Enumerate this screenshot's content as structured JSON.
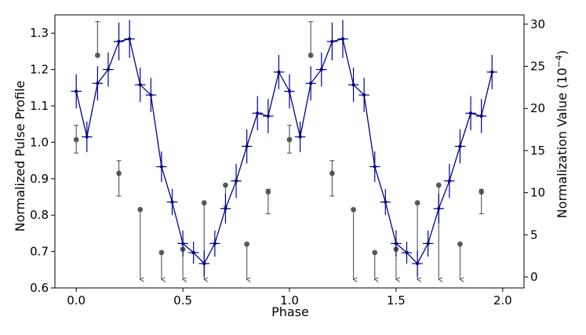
{
  "chart_data": {
    "type": "line",
    "xlabel": "Phase",
    "ylabel": "Normalized Pulse Profile",
    "y2label": "Normalization Value (10",
    "y2label_exp": "−4",
    "y2label_close": ")",
    "xlim": [
      -0.1,
      2.1
    ],
    "ylim": [
      0.6,
      1.35
    ],
    "y2lim": [
      -1.3,
      31.1
    ],
    "x_ticks": [
      0.0,
      0.5,
      1.0,
      1.5,
      2.0
    ],
    "x_tick_labels": [
      "0.0",
      "0.5",
      "1.0",
      "1.5",
      "2.0"
    ],
    "y_ticks": [
      0.6,
      0.7,
      0.8,
      0.9,
      1.0,
      1.1,
      1.2,
      1.3
    ],
    "y_tick_labels": [
      "0.6",
      "0.7",
      "0.8",
      "0.9",
      "1.0",
      "1.1",
      "1.2",
      "1.3"
    ],
    "y2_ticks": [
      0,
      5,
      10,
      15,
      20,
      25,
      30
    ],
    "y2_tick_labels": [
      "0",
      "5",
      "10",
      "15",
      "20",
      "25",
      "30"
    ],
    "grid": false,
    "series": [
      {
        "style": "line-with-errorbars",
        "color": "#00008b",
        "axis": "left",
        "x_halfwidth": 0.025,
        "points": [
          {
            "x": 0.0,
            "y": 1.14,
            "yerr": 0.047
          },
          {
            "x": 0.05,
            "y": 1.015,
            "yerr": 0.042
          },
          {
            "x": 0.1,
            "y": 1.162,
            "yerr": 0.047
          },
          {
            "x": 0.15,
            "y": 1.2,
            "yerr": 0.047
          },
          {
            "x": 0.2,
            "y": 1.277,
            "yerr": 0.052
          },
          {
            "x": 0.25,
            "y": 1.284,
            "yerr": 0.052
          },
          {
            "x": 0.3,
            "y": 1.158,
            "yerr": 0.047
          },
          {
            "x": 0.35,
            "y": 1.13,
            "yerr": 0.047
          },
          {
            "x": 0.4,
            "y": 0.933,
            "yerr": 0.042
          },
          {
            "x": 0.45,
            "y": 0.836,
            "yerr": 0.036
          },
          {
            "x": 0.5,
            "y": 0.722,
            "yerr": 0.036
          },
          {
            "x": 0.55,
            "y": 0.697,
            "yerr": 0.03
          },
          {
            "x": 0.6,
            "y": 0.667,
            "yerr": 0.036
          },
          {
            "x": 0.65,
            "y": 0.722,
            "yerr": 0.036
          },
          {
            "x": 0.7,
            "y": 0.818,
            "yerr": 0.041
          },
          {
            "x": 0.75,
            "y": 0.894,
            "yerr": 0.047
          },
          {
            "x": 0.8,
            "y": 0.989,
            "yerr": 0.047
          },
          {
            "x": 0.85,
            "y": 1.08,
            "yerr": 0.047
          },
          {
            "x": 0.9,
            "y": 1.072,
            "yerr": 0.047
          },
          {
            "x": 0.95,
            "y": 1.193,
            "yerr": 0.047
          },
          {
            "x": 1.0,
            "y": 1.14,
            "yerr": 0.047
          },
          {
            "x": 1.05,
            "y": 1.015,
            "yerr": 0.042
          },
          {
            "x": 1.1,
            "y": 1.162,
            "yerr": 0.047
          },
          {
            "x": 1.15,
            "y": 1.2,
            "yerr": 0.047
          },
          {
            "x": 1.2,
            "y": 1.277,
            "yerr": 0.052
          },
          {
            "x": 1.25,
            "y": 1.284,
            "yerr": 0.052
          },
          {
            "x": 1.3,
            "y": 1.158,
            "yerr": 0.047
          },
          {
            "x": 1.35,
            "y": 1.13,
            "yerr": 0.047
          },
          {
            "x": 1.4,
            "y": 0.933,
            "yerr": 0.042
          },
          {
            "x": 1.45,
            "y": 0.836,
            "yerr": 0.036
          },
          {
            "x": 1.5,
            "y": 0.722,
            "yerr": 0.036
          },
          {
            "x": 1.55,
            "y": 0.697,
            "yerr": 0.03
          },
          {
            "x": 1.6,
            "y": 0.667,
            "yerr": 0.036
          },
          {
            "x": 1.65,
            "y": 0.722,
            "yerr": 0.036
          },
          {
            "x": 1.7,
            "y": 0.818,
            "yerr": 0.041
          },
          {
            "x": 1.75,
            "y": 0.894,
            "yerr": 0.047
          },
          {
            "x": 1.8,
            "y": 0.989,
            "yerr": 0.047
          },
          {
            "x": 1.85,
            "y": 1.08,
            "yerr": 0.047
          },
          {
            "x": 1.9,
            "y": 1.072,
            "yerr": 0.047
          },
          {
            "x": 1.95,
            "y": 1.193,
            "yerr": 0.047
          }
        ]
      },
      {
        "style": "points-with-errorbars-and-upper-limits",
        "color": "#404040",
        "axis": "right",
        "points": [
          {
            "x": 0.0,
            "y": 16.3,
            "err_up": 1.7,
            "err_down": 1.6
          },
          {
            "x": 0.1,
            "y": 26.3,
            "err_up": 4.0
          },
          {
            "x": 0.2,
            "y": 12.3,
            "err_up": 1.5,
            "err_down": 2.7
          },
          {
            "x": 0.3,
            "y": 8.0,
            "upper_limit": true
          },
          {
            "x": 0.4,
            "y": 2.9,
            "upper_limit": true
          },
          {
            "x": 0.5,
            "y": 3.3,
            "upper_limit": true
          },
          {
            "x": 0.6,
            "y": 8.8,
            "upper_limit": true
          },
          {
            "x": 0.7,
            "y": 10.9,
            "err_down": 2.5
          },
          {
            "x": 0.8,
            "y": 3.9,
            "upper_limit": true
          },
          {
            "x": 0.9,
            "y": 10.1,
            "err_up": 0.3,
            "err_down": 2.6
          },
          {
            "x": 1.0,
            "y": 16.3,
            "err_up": 1.7,
            "err_down": 1.6
          },
          {
            "x": 1.1,
            "y": 26.3,
            "err_up": 4.0
          },
          {
            "x": 1.2,
            "y": 12.3,
            "err_up": 1.5,
            "err_down": 2.7
          },
          {
            "x": 1.3,
            "y": 8.0,
            "upper_limit": true
          },
          {
            "x": 1.4,
            "y": 2.9,
            "upper_limit": true
          },
          {
            "x": 1.5,
            "y": 3.3,
            "upper_limit": true
          },
          {
            "x": 1.6,
            "y": 8.8,
            "upper_limit": true
          },
          {
            "x": 1.7,
            "y": 10.9,
            "upper_limit": true
          },
          {
            "x": 1.8,
            "y": 3.9,
            "upper_limit": true
          },
          {
            "x": 1.9,
            "y": 10.1,
            "err_up": 0.3,
            "err_down": 2.6
          }
        ]
      }
    ]
  }
}
